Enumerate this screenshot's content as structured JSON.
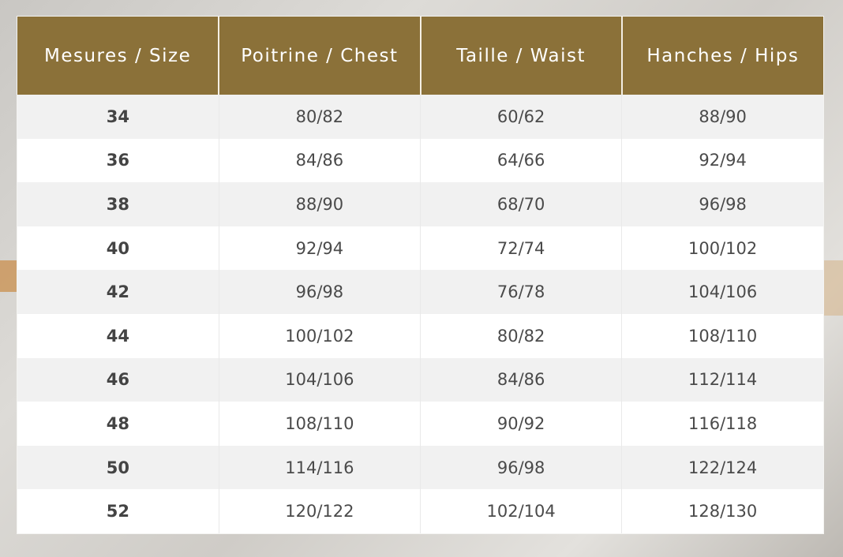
{
  "colors": {
    "header_bg": "#8b7139",
    "header_text": "#ffffff",
    "row_alt": "#f1f1f1"
  },
  "table": {
    "headers": [
      "Mesures / Size",
      "Poitrine / Chest",
      "Taille / Waist",
      "Hanches / Hips"
    ],
    "rows": [
      [
        "34",
        "80/82",
        "60/62",
        "88/90"
      ],
      [
        "36",
        "84/86",
        "64/66",
        "92/94"
      ],
      [
        "38",
        "88/90",
        "68/70",
        "96/98"
      ],
      [
        "40",
        "92/94",
        "72/74",
        "100/102"
      ],
      [
        "42",
        "96/98",
        "76/78",
        "104/106"
      ],
      [
        "44",
        "100/102",
        "80/82",
        "108/110"
      ],
      [
        "46",
        "104/106",
        "84/86",
        "112/114"
      ],
      [
        "48",
        "108/110",
        "90/92",
        "116/118"
      ],
      [
        "50",
        "114/116",
        "96/98",
        "122/124"
      ],
      [
        "52",
        "120/122",
        "102/104",
        "128/130"
      ]
    ]
  }
}
